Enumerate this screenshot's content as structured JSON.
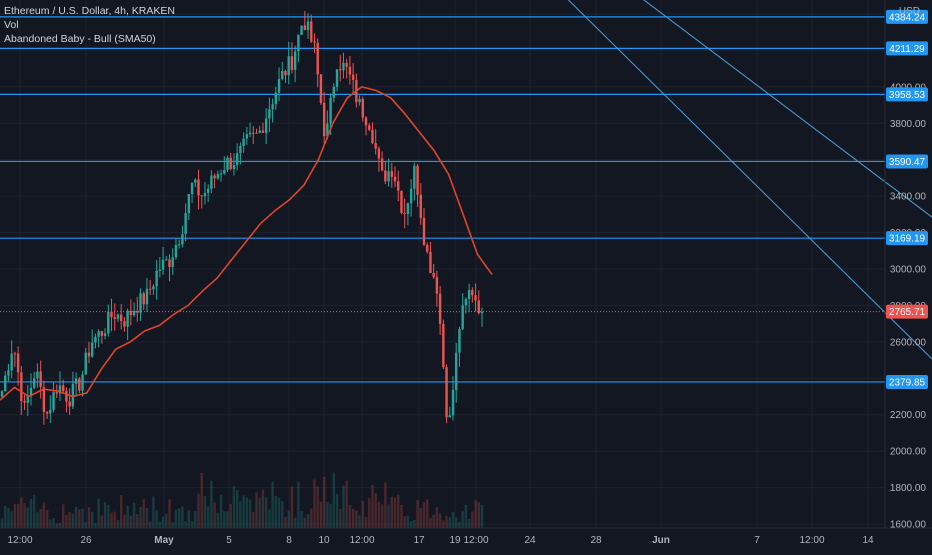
{
  "legend": {
    "symbol": "Ethereum / U.S. Dollar, 4h, KRAKEN",
    "volume": "Vol",
    "indicator": "Abandoned Baby - Bull (SMA50)"
  },
  "currency": "USD",
  "colors": {
    "background": "#131722",
    "grid": "#1e222d",
    "up": "#26a69a",
    "down": "#ef5350",
    "sma": "#e0452c",
    "level_line": "#2196f3",
    "channel": "#4aa3e0",
    "current": "#f05350"
  },
  "chart_data": {
    "type": "candlestick",
    "ylim": [
      1600,
      4500
    ],
    "y_ticks": [
      "4400.00",
      "4200.00",
      "4000.00",
      "3800.00",
      "3600.00",
      "3400.00",
      "3200.00",
      "3000.00",
      "2800.00",
      "2600.00",
      "2400.00",
      "2200.00",
      "2000.00",
      "1800.00",
      "1600.00"
    ],
    "x_ticks": [
      "12:00",
      "26",
      "May",
      "5",
      "8",
      "10",
      "12:00",
      "17",
      "19",
      "12:00",
      "24",
      "28",
      "Jun",
      "7",
      "12:00",
      "14"
    ],
    "levels": [
      {
        "price": 4384.24,
        "label": "4384.24"
      },
      {
        "price": 4211.29,
        "label": "4211.29"
      },
      {
        "price": 3958.53,
        "label": "3958.53"
      },
      {
        "price": 3590.47,
        "label": "3590.47"
      },
      {
        "price": 3169.19,
        "label": "3169.19"
      },
      {
        "price": 2379.85,
        "label": "2379.85"
      }
    ],
    "current_price": {
      "price": 2765.71,
      "label": "2765.71"
    },
    "price_path": [
      2330,
      2600,
      2220,
      2450,
      2200,
      2370,
      2290,
      2380,
      2600,
      2660,
      2760,
      2720,
      2800,
      2850,
      3000,
      3050,
      3200,
      3460,
      3400,
      3500,
      3580,
      3600,
      3700,
      3740,
      3900,
      4050,
      4150,
      4380,
      4200,
      3700,
      4150,
      4080,
      3900,
      3800,
      3500,
      3560,
      3300,
      3550,
      3100,
      2900,
      2100,
      2700,
      2900,
      2765
    ],
    "sma_path": [
      2280,
      2350,
      2300,
      2340,
      2330,
      2300,
      2320,
      2450,
      2560,
      2600,
      2660,
      2690,
      2750,
      2800,
      2880,
      2950,
      3050,
      3150,
      3250,
      3320,
      3380,
      3460,
      3600,
      3800,
      3940,
      4000,
      3980,
      3940,
      3850,
      3750,
      3650,
      3520,
      3300,
      3080,
      2970
    ],
    "channel_lines": [
      {
        "from": [
          "2021-05-09",
          4520
        ],
        "to": [
          "2021-05-23",
          1750
        ]
      },
      {
        "from": [
          "2021-05-11",
          4520
        ],
        "to": [
          "2021-05-30",
          1650
        ]
      }
    ]
  }
}
